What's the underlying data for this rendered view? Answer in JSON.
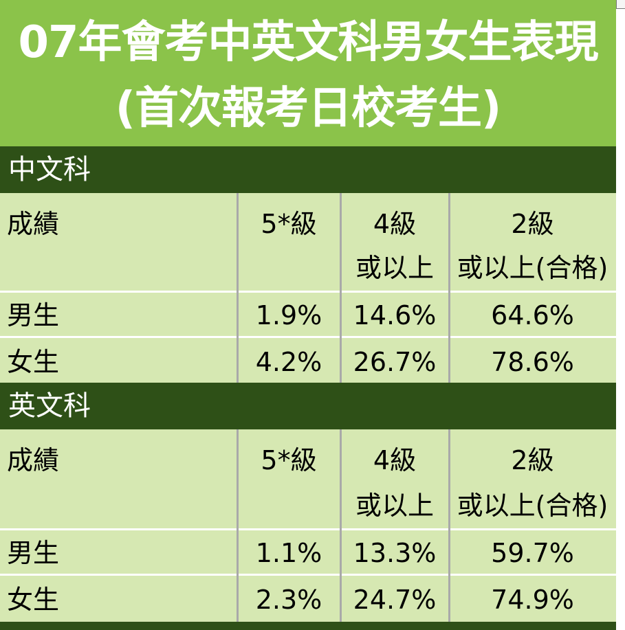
{
  "title": {
    "line1": "07年會考中英文科男女生表現",
    "line2": "(首次報考日校考生)"
  },
  "colors": {
    "title_bg": "#8bc34a",
    "section_bg": "#2e5017",
    "table_bg": "#d6e8b2"
  },
  "sections": [
    {
      "name": "中文科",
      "header": {
        "label": "成績",
        "c1": "5*級",
        "c2_line1": "4級",
        "c2_line2": "或以上",
        "c3_line1": "2級",
        "c3_line2": "或以上(合格)"
      },
      "rows": [
        {
          "label": "男生",
          "c1": "1.9%",
          "c2": "14.6%",
          "c3": "64.6%"
        },
        {
          "label": "女生",
          "c1": "4.2%",
          "c2": "26.7%",
          "c3": "78.6%"
        }
      ]
    },
    {
      "name": "英文科",
      "header": {
        "label": "成績",
        "c1": "5*級",
        "c2_line1": "4級",
        "c2_line2": "或以上",
        "c3_line1": "2級",
        "c3_line2": "或以上(合格)"
      },
      "rows": [
        {
          "label": "男生",
          "c1": "1.1%",
          "c2": "13.3%",
          "c3": "59.7%"
        },
        {
          "label": "女生",
          "c1": "2.3%",
          "c2": "24.7%",
          "c3": "74.9%"
        }
      ]
    }
  ]
}
